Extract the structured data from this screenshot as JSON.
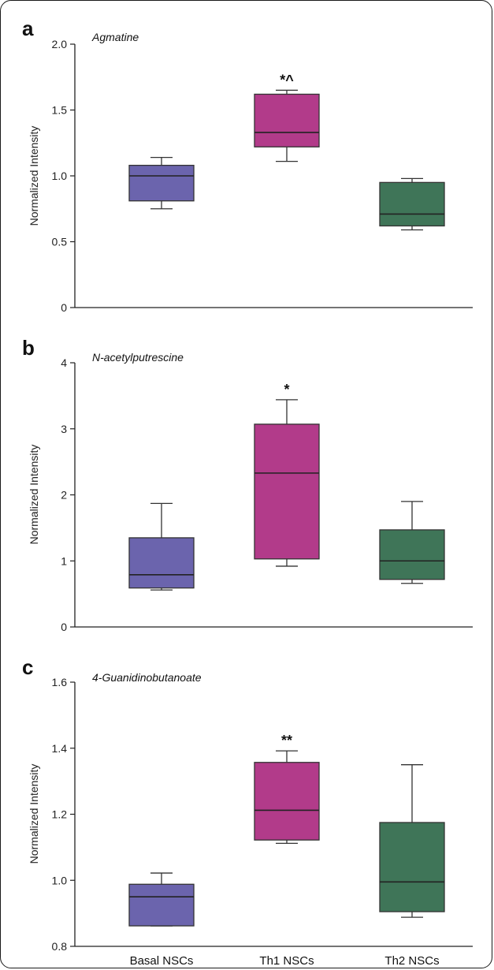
{
  "chart_data": [
    {
      "type": "box",
      "panel_letter": "a",
      "title": "Agmatine",
      "ylabel": "Normalized Intensity",
      "ylim": [
        0,
        2.0
      ],
      "yticks": [
        0,
        0.5,
        1.0,
        1.5,
        2.0
      ],
      "ytick_labels": [
        "0",
        "0.5",
        "1.0",
        "1.5",
        "2.0"
      ],
      "categories": [
        "Basal NSCs",
        "Th1 NSCs",
        "Th2 NSCs"
      ],
      "boxes": [
        {
          "min": 0.75,
          "q1": 0.81,
          "median": 1.0,
          "q3": 1.08,
          "max": 1.14,
          "color": "#6b64ad",
          "annotation": ""
        },
        {
          "min": 1.11,
          "q1": 1.22,
          "median": 1.33,
          "q3": 1.62,
          "max": 1.65,
          "color": "#b23b8a",
          "annotation": "*^"
        },
        {
          "min": 0.59,
          "q1": 0.62,
          "median": 0.71,
          "q3": 0.95,
          "max": 0.98,
          "color": "#3f7558",
          "annotation": ""
        }
      ]
    },
    {
      "type": "box",
      "panel_letter": "b",
      "title": "N-acetylputrescine",
      "ylabel": "Normalized Intensity",
      "ylim": [
        0,
        4
      ],
      "yticks": [
        0,
        1,
        2,
        3,
        4
      ],
      "ytick_labels": [
        "0",
        "1",
        "2",
        "3",
        "4"
      ],
      "categories": [
        "Basal NSCs",
        "Th1 NSCs",
        "Th2 NSCs"
      ],
      "boxes": [
        {
          "min": 0.56,
          "q1": 0.59,
          "median": 0.79,
          "q3": 1.35,
          "max": 1.87,
          "color": "#6b64ad",
          "annotation": ""
        },
        {
          "min": 0.92,
          "q1": 1.03,
          "median": 2.33,
          "q3": 3.07,
          "max": 3.44,
          "color": "#b23b8a",
          "annotation": "*"
        },
        {
          "min": 0.66,
          "q1": 0.72,
          "median": 1.0,
          "q3": 1.47,
          "max": 1.9,
          "color": "#3f7558",
          "annotation": ""
        }
      ]
    },
    {
      "type": "box",
      "panel_letter": "c",
      "title": "4-Guanidinobutanoate",
      "ylabel": "Normalized Intensity",
      "ylim": [
        0.8,
        1.6
      ],
      "yticks": [
        0.8,
        1.0,
        1.2,
        1.4,
        1.6
      ],
      "ytick_labels": [
        "0.8",
        "1.0",
        "1.2",
        "1.4",
        "1.6"
      ],
      "categories": [
        "Basal NSCs",
        "Th1 NSCs",
        "Th2 NSCs"
      ],
      "category_labels_shown": true,
      "boxes": [
        {
          "min": 0.862,
          "q1": 0.862,
          "median": 0.95,
          "q3": 0.988,
          "max": 1.022,
          "color": "#6b64ad",
          "annotation": ""
        },
        {
          "min": 1.112,
          "q1": 1.122,
          "median": 1.212,
          "q3": 1.357,
          "max": 1.392,
          "color": "#b23b8a",
          "annotation": "**"
        },
        {
          "min": 0.888,
          "q1": 0.905,
          "median": 0.995,
          "q3": 1.175,
          "max": 1.35,
          "color": "#3f7558",
          "annotation": ""
        }
      ]
    }
  ]
}
